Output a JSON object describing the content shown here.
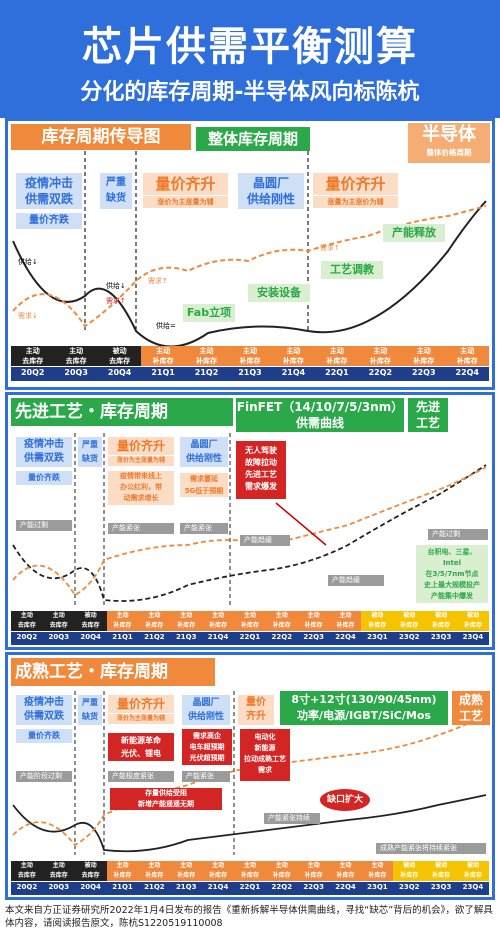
{
  "title": "芯片供需平衡测算",
  "subtitle": "分化的库存周期-半导体风向标陈杭",
  "panel1": {
    "left_title": "库存周期传导图",
    "center_title": "整体库存周期",
    "right_title": "半导体",
    "right_sub": "整体价格周期",
    "phase_labels": [
      "疫情冲击\n供需双跌",
      "量价齐跌",
      "严重\n缺货",
      "量价齐升",
      "涨价为主涨量为辅",
      "晶圆厂\n供给刚性",
      "量价齐升",
      "涨量为主涨价为辅",
      "产能释放",
      "工艺调教",
      "安装设备",
      "Fab立项"
    ],
    "curve_labels": [
      "供给↓",
      "需求↓",
      "供给↓",
      "需求↑",
      "需求↑",
      "供给=",
      "需求↑"
    ],
    "quarters_top": [
      "主动\n去库存",
      "主动\n去库存",
      "被动\n去库存",
      "主动\n补库存",
      "主动\n补库存",
      "主动\n补库存",
      "主动\n补库存",
      "主动\n补库存",
      "主动\n补库存",
      "主动\n补库存",
      "主动\n补库存"
    ],
    "quarters": [
      "20Q2",
      "20Q3",
      "20Q4",
      "21Q1",
      "21Q2",
      "21Q3",
      "21Q4",
      "22Q1",
      "22Q2",
      "22Q3",
      "22Q4"
    ]
  },
  "panel2": {
    "left_title": "先进工艺・库存周期",
    "center_title": "FinFET（14/10/7/5/3nm）\n供需曲线",
    "right_title": "先进\n工艺",
    "boxes": [
      "疫情冲击\n供需双跌",
      "严重\n缺货",
      "量价齐升",
      "涨价为主涨量为辅",
      "晶圆厂\n供给刚性",
      "量价齐跌",
      "疫情带来线上\n办公红利，带\n动需求增长",
      "需求蔓延\n5G低于预期",
      "无人驾驶\n故障拉动\n先进工艺\n需求爆发",
      "台积电、三星、\nIntel\n在3/5/7nm节点\n史上最大规模投产\n产能集中爆发"
    ],
    "grey_labels": [
      "产能过剩",
      "产能紧张",
      "产能紧张",
      "产能趋缓",
      "产能趋缓",
      "产能过剩"
    ],
    "quarters": [
      "20Q2",
      "20Q3",
      "20Q4",
      "21Q1",
      "21Q2",
      "21Q3",
      "21Q4",
      "22Q1",
      "22Q2",
      "22Q3",
      "22Q4",
      "23Q1",
      "23Q2",
      "23Q3",
      "23Q4"
    ],
    "quarters_top": [
      "主动\n去库存",
      "主动\n去库存",
      "被动\n去库存",
      "主动\n补库存",
      "主动\n补库存",
      "主动\n补库存",
      "主动\n补库存",
      "主动\n补库存",
      "主动\n补库存",
      "主动\n补库存",
      "主动\n补库存",
      "被动\n补库存",
      "被动\n补库存",
      "被动\n补库存",
      "被动\n补库存"
    ]
  },
  "panel3": {
    "left_title": "成熟工艺・库存周期",
    "center_title": "8寸+12寸(130/90/45nm)\n功率/电源/IGBT/SiC/Mos",
    "right_title": "成熟\n工艺",
    "boxes": [
      "疫情冲击\n供需双跌",
      "严重\n缺货",
      "量价齐升",
      "涨价为主涨量为辅",
      "晶圆厂\n供给刚性",
      "量价\n齐升",
      "量价齐跌",
      "新能源革命\n光伏、锂电",
      "需求高企\n电车超预期\n光伏超预期",
      "电动化\n新能源\n拉动成熟工艺\n需求",
      "存量供给受阻\n新增产能遥遥无期",
      "缺口扩大"
    ],
    "grey_labels": [
      "产能阶段过剩",
      "产能极度紧张",
      "产能紧张",
      "产能紧张持续",
      "成熟产能紧张将持续紧张"
    ],
    "quarters": [
      "20Q2",
      "20Q3",
      "20Q4",
      "21Q1",
      "21Q2",
      "21Q3",
      "21Q4",
      "22Q1",
      "22Q2",
      "22Q3",
      "22Q4",
      "23Q1",
      "23Q2",
      "23Q3",
      "23Q4"
    ],
    "quarters_top": [
      "主动\n去库存",
      "主动\n去库存",
      "被动\n去库存",
      "主动\n补库存",
      "主动\n补库存",
      "主动\n补库存",
      "主动\n补库存",
      "主动\n补库存",
      "主动\n补库存",
      "主动\n补库存",
      "主动\n补库存",
      "主动\n补库存",
      "被动\n补库存",
      "被动\n补库存",
      "被动\n补库存"
    ]
  },
  "footer": "本文来自方正证券研究所2022年1月4日发布的报告《重新拆解半导体供需曲线，寻找“缺芯”背后的机会》，欲了解具体内容，请阅读报告原文，陈杭S1220519110008",
  "colors": {
    "blue": "#2f6fdc",
    "orange": "#f0893c",
    "green": "#2aa84a",
    "red": "#d42525",
    "navy": "#1f3e8a",
    "grey": "#9b9b9b"
  }
}
